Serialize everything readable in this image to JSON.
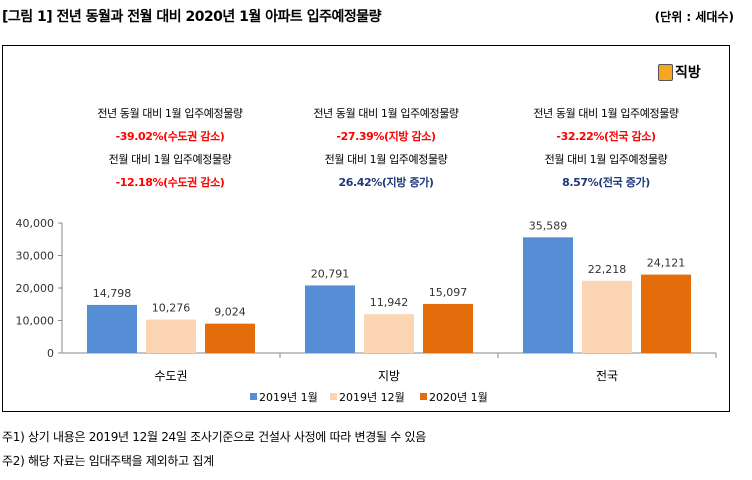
{
  "header": {
    "title": "[그림 1] 전년 동월과 전월 대비 2020년 1월 아파트 입주예정물량",
    "unit": "(단위 : 세대수)"
  },
  "logo": {
    "text": "직방"
  },
  "annotations": [
    {
      "yoy_label": "전년 동월 대비 1월 입주예정물량",
      "yoy_value": "-39.02%(수도권 감소)",
      "mom_label": "전월 대비 1월 입주예정물량",
      "mom_value": "-12.18%(수도권 감소)",
      "mom_color": "red"
    },
    {
      "yoy_label": "전년 동월 대비 1월 입주예정물량",
      "yoy_value": "-27.39%(지방 감소)",
      "mom_label": "전월 대비 1월 입주예정물량",
      "mom_value": "26.42%(지방 증가)",
      "mom_color": "blue"
    },
    {
      "yoy_label": "전년 동월 대비 1월 입주예정물량",
      "yoy_value": "-32.22%(전국 감소)",
      "mom_label": "전월 대비 1월 입주예정물량",
      "mom_value": "8.57%(전국 증가)",
      "mom_color": "blue"
    }
  ],
  "chart_data": {
    "type": "bar",
    "categories": [
      "수도권",
      "지방",
      "전국"
    ],
    "series": [
      {
        "name": "2019년 1월",
        "values": [
          14798,
          20791,
          35589
        ],
        "labels": [
          "14,798",
          "20,791",
          "35,589"
        ],
        "color": "#558ed5"
      },
      {
        "name": "2019년 12월",
        "values": [
          10276,
          11942,
          22218
        ],
        "labels": [
          "10,276",
          "11,942",
          "22,218"
        ],
        "color": "#fcd5b5"
      },
      {
        "name": "2020년 1월",
        "values": [
          9024,
          15097,
          24121
        ],
        "labels": [
          "9,024",
          "15,097",
          "24,121"
        ],
        "color": "#e46c0a"
      }
    ],
    "yticks": [
      "0",
      "10,000",
      "20,000",
      "30,000",
      "40,000"
    ],
    "ylim": [
      0,
      40000
    ],
    "legend": "bottom"
  },
  "footnotes": [
    "주1) 상기 내용은 2019년 12월 24일 조사기준으로 건설사 사정에 따라 변경될 수 있음",
    "주2) 해당 자료는 임대주택을 제외하고 집계"
  ]
}
